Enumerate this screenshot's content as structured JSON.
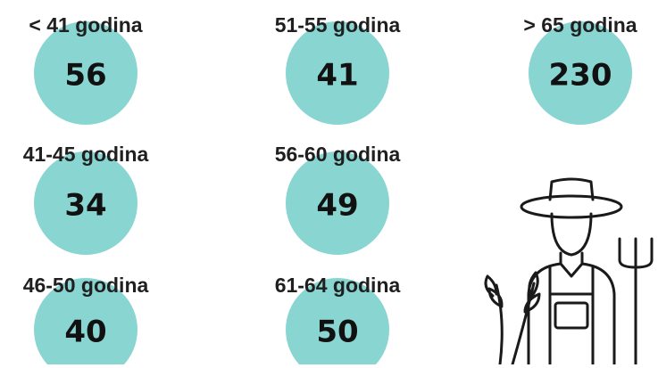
{
  "items": [
    {
      "label": "< 41 godina",
      "value": 56
    },
    {
      "label": "51-55 godina",
      "value": 41
    },
    {
      "label": "> 65 godina",
      "value": 230
    },
    {
      "label": "41-45 godina",
      "value": 34
    },
    {
      "label": "56-60 godina",
      "value": 49
    },
    {
      "label": "46-50 godina",
      "value": 40
    },
    {
      "label": "61-64 godina",
      "value": 50
    }
  ]
}
